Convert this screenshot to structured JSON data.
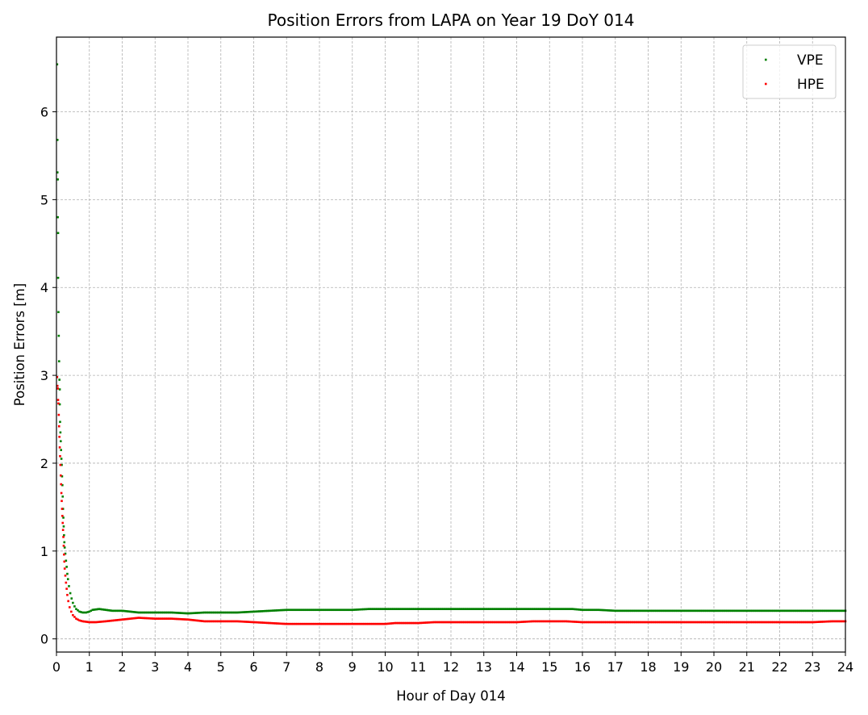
{
  "chart_data": {
    "type": "scatter",
    "title": "Position Errors from LAPA on Year 19 DoY 014",
    "xlabel": "Hour of Day 014",
    "ylabel": "Position Errors [m]",
    "xlim": [
      0,
      24
    ],
    "ylim": [
      -0.15,
      6.85
    ],
    "xticks": [
      "0",
      "1",
      "2",
      "3",
      "4",
      "5",
      "6",
      "7",
      "8",
      "9",
      "10",
      "11",
      "12",
      "13",
      "14",
      "15",
      "16",
      "17",
      "18",
      "19",
      "20",
      "21",
      "22",
      "23",
      "24"
    ],
    "yticks": [
      "0",
      "1",
      "2",
      "3",
      "4",
      "5",
      "6"
    ],
    "grid": true,
    "legend_position": "top-right",
    "series": [
      {
        "name": "VPE",
        "color": "#008000",
        "points": [
          [
            0.02,
            6.54
          ],
          [
            0.03,
            5.68
          ],
          [
            0.03,
            5.31
          ],
          [
            0.04,
            5.23
          ],
          [
            0.04,
            4.8
          ],
          [
            0.05,
            4.62
          ],
          [
            0.05,
            4.11
          ],
          [
            0.06,
            3.72
          ],
          [
            0.07,
            3.45
          ],
          [
            0.08,
            3.16
          ],
          [
            0.09,
            2.95
          ],
          [
            0.1,
            2.84
          ],
          [
            0.1,
            2.67
          ],
          [
            0.11,
            2.47
          ],
          [
            0.12,
            2.35
          ],
          [
            0.13,
            2.25
          ],
          [
            0.14,
            2.15
          ],
          [
            0.15,
            2.05
          ],
          [
            0.16,
            1.98
          ],
          [
            0.17,
            1.85
          ],
          [
            0.18,
            1.75
          ],
          [
            0.19,
            1.62
          ],
          [
            0.2,
            1.48
          ],
          [
            0.21,
            1.38
          ],
          [
            0.22,
            1.28
          ],
          [
            0.23,
            1.18
          ],
          [
            0.24,
            1.1
          ],
          [
            0.25,
            1.04
          ],
          [
            0.27,
            0.97
          ],
          [
            0.29,
            0.89
          ],
          [
            0.31,
            0.82
          ],
          [
            0.33,
            0.74
          ],
          [
            0.35,
            0.68
          ],
          [
            0.38,
            0.6
          ],
          [
            0.42,
            0.52
          ],
          [
            0.46,
            0.46
          ],
          [
            0.5,
            0.41
          ],
          [
            0.55,
            0.37
          ],
          [
            0.6,
            0.34
          ],
          [
            0.7,
            0.31
          ],
          [
            0.8,
            0.3
          ],
          [
            0.9,
            0.3
          ],
          [
            1.0,
            0.31
          ],
          [
            1.1,
            0.33
          ],
          [
            1.3,
            0.34
          ],
          [
            1.5,
            0.33
          ],
          [
            1.7,
            0.32
          ],
          [
            2.0,
            0.32
          ],
          [
            2.5,
            0.3
          ],
          [
            3.0,
            0.3
          ],
          [
            3.5,
            0.3
          ],
          [
            4.0,
            0.29
          ],
          [
            4.5,
            0.3
          ],
          [
            5.0,
            0.3
          ],
          [
            5.5,
            0.3
          ],
          [
            6.0,
            0.31
          ],
          [
            6.5,
            0.32
          ],
          [
            7.0,
            0.33
          ],
          [
            7.5,
            0.33
          ],
          [
            8.0,
            0.33
          ],
          [
            8.5,
            0.33
          ],
          [
            9.0,
            0.33
          ],
          [
            9.5,
            0.34
          ],
          [
            10.0,
            0.34
          ],
          [
            11.0,
            0.34
          ],
          [
            12.0,
            0.34
          ],
          [
            13.0,
            0.34
          ],
          [
            14.0,
            0.34
          ],
          [
            15.0,
            0.34
          ],
          [
            15.7,
            0.34
          ],
          [
            16.0,
            0.33
          ],
          [
            16.5,
            0.33
          ],
          [
            17.0,
            0.32
          ],
          [
            18.0,
            0.32
          ],
          [
            19.0,
            0.32
          ],
          [
            20.0,
            0.32
          ],
          [
            21.0,
            0.32
          ],
          [
            22.0,
            0.32
          ],
          [
            23.0,
            0.32
          ],
          [
            24.0,
            0.32
          ]
        ]
      },
      {
        "name": "HPE",
        "color": "#ff0000",
        "points": [
          [
            0.02,
            2.98
          ],
          [
            0.03,
            2.88
          ],
          [
            0.04,
            2.85
          ],
          [
            0.05,
            2.72
          ],
          [
            0.06,
            2.68
          ],
          [
            0.07,
            2.55
          ],
          [
            0.08,
            2.42
          ],
          [
            0.09,
            2.3
          ],
          [
            0.1,
            2.18
          ],
          [
            0.11,
            2.08
          ],
          [
            0.12,
            1.98
          ],
          [
            0.13,
            1.86
          ],
          [
            0.14,
            1.76
          ],
          [
            0.15,
            1.66
          ],
          [
            0.16,
            1.57
          ],
          [
            0.17,
            1.48
          ],
          [
            0.18,
            1.4
          ],
          [
            0.19,
            1.32
          ],
          [
            0.2,
            1.24
          ],
          [
            0.21,
            1.16
          ],
          [
            0.22,
            1.06
          ],
          [
            0.23,
            0.96
          ],
          [
            0.24,
            0.88
          ],
          [
            0.25,
            0.8
          ],
          [
            0.27,
            0.72
          ],
          [
            0.29,
            0.64
          ],
          [
            0.31,
            0.57
          ],
          [
            0.33,
            0.5
          ],
          [
            0.36,
            0.43
          ],
          [
            0.4,
            0.36
          ],
          [
            0.45,
            0.31
          ],
          [
            0.5,
            0.27
          ],
          [
            0.6,
            0.23
          ],
          [
            0.7,
            0.21
          ],
          [
            0.8,
            0.2
          ],
          [
            1.0,
            0.19
          ],
          [
            1.2,
            0.19
          ],
          [
            1.5,
            0.2
          ],
          [
            2.0,
            0.22
          ],
          [
            2.5,
            0.24
          ],
          [
            3.0,
            0.23
          ],
          [
            3.5,
            0.23
          ],
          [
            4.0,
            0.22
          ],
          [
            4.5,
            0.2
          ],
          [
            5.0,
            0.2
          ],
          [
            5.5,
            0.2
          ],
          [
            6.0,
            0.19
          ],
          [
            6.5,
            0.18
          ],
          [
            7.0,
            0.17
          ],
          [
            8.0,
            0.17
          ],
          [
            9.0,
            0.17
          ],
          [
            10.0,
            0.17
          ],
          [
            10.3,
            0.18
          ],
          [
            11.0,
            0.18
          ],
          [
            11.5,
            0.19
          ],
          [
            12.0,
            0.19
          ],
          [
            13.0,
            0.19
          ],
          [
            14.0,
            0.19
          ],
          [
            14.5,
            0.2
          ],
          [
            15.0,
            0.2
          ],
          [
            15.5,
            0.2
          ],
          [
            16.0,
            0.19
          ],
          [
            17.0,
            0.19
          ],
          [
            18.0,
            0.19
          ],
          [
            19.0,
            0.19
          ],
          [
            20.0,
            0.19
          ],
          [
            21.0,
            0.19
          ],
          [
            22.0,
            0.19
          ],
          [
            23.0,
            0.19
          ],
          [
            23.6,
            0.2
          ],
          [
            24.0,
            0.2
          ]
        ]
      }
    ]
  }
}
